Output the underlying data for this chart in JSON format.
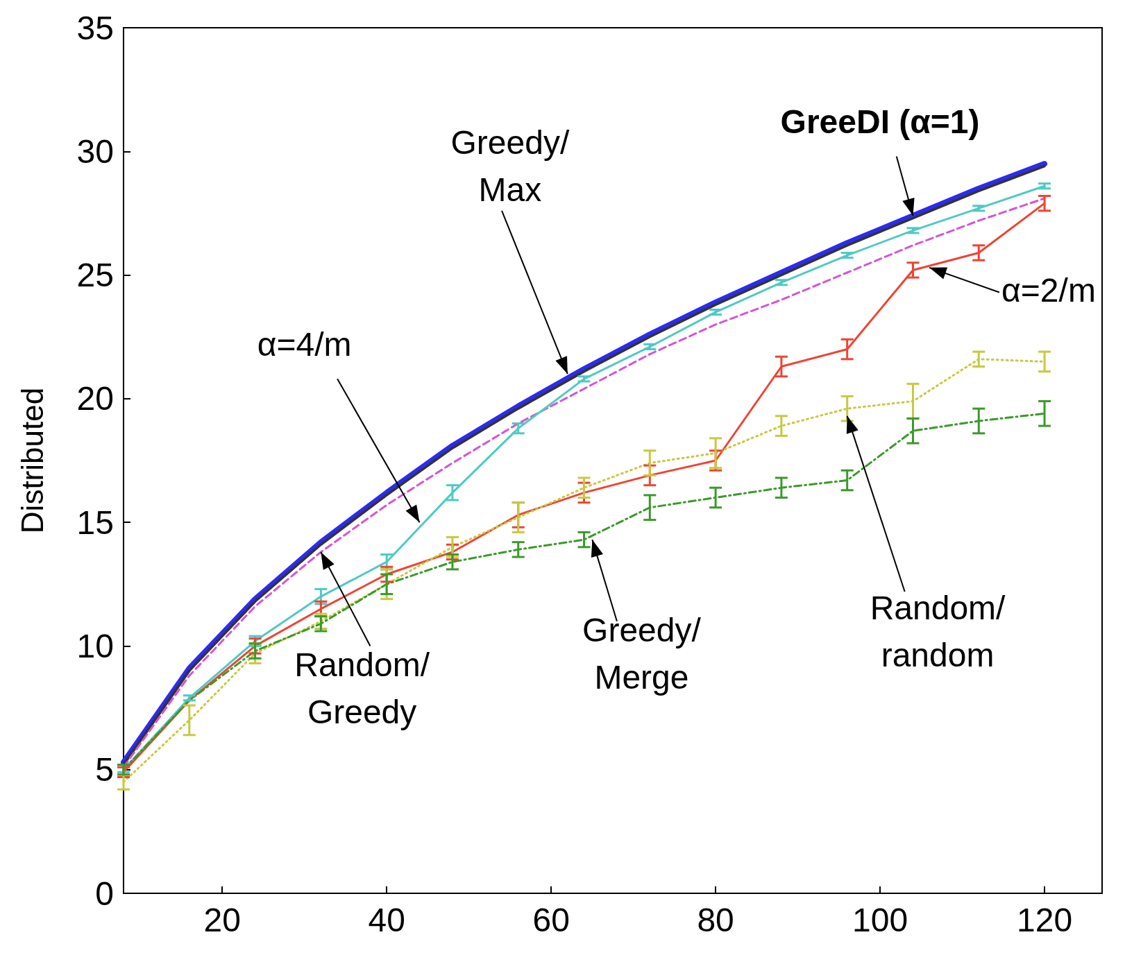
{
  "chart_data": {
    "type": "line",
    "ylabel": "Distributed",
    "x": [
      8,
      16,
      24,
      32,
      40,
      48,
      56,
      64,
      72,
      80,
      88,
      96,
      104,
      112,
      120
    ],
    "xlim": [
      8,
      127
    ],
    "xticks": [
      20,
      40,
      60,
      80,
      100,
      120
    ],
    "ylim": [
      0,
      35
    ],
    "yticks": [
      0,
      5,
      10,
      15,
      20,
      25,
      30,
      35
    ],
    "marker": "none",
    "series": [
      {
        "color": "#2b2bf0",
        "values": [
          5.3,
          9.1,
          11.9,
          14.2,
          16.2,
          18.1,
          19.7,
          21.2,
          22.6,
          23.9,
          25.1,
          26.3,
          27.4,
          28.5,
          29.5
        ]
      },
      {
        "color": "#333333",
        "values": [
          5.2,
          9.0,
          11.8,
          14.1,
          16.1,
          18.0,
          19.6,
          21.1,
          22.5,
          23.8,
          25.0,
          26.2,
          27.3,
          28.4,
          29.4
        ]
      },
      {
        "color": "#d455d4",
        "line_style": "dashed",
        "values": [
          5.1,
          8.8,
          11.6,
          13.8,
          15.7,
          17.4,
          19.0,
          20.4,
          21.8,
          23.0,
          24.0,
          25.1,
          26.2,
          27.2,
          28.1
        ]
      },
      {
        "color": "#4fc9c4",
        "values": [
          5.0,
          7.9,
          10.2,
          12.0,
          13.4,
          16.2,
          18.8,
          20.8,
          22.1,
          23.5,
          24.7,
          25.8,
          26.8,
          27.7,
          28.6
        ],
        "errors": [
          0.1,
          0.1,
          0.2,
          0.3,
          0.3,
          0.3,
          0.2,
          0.1,
          0.1,
          0.1,
          0.1,
          0.1,
          0.1,
          0.1,
          0.1
        ]
      },
      {
        "color": "#ee4433",
        "values": [
          4.9,
          7.8,
          10.0,
          11.5,
          12.9,
          13.8,
          15.3,
          16.2,
          16.9,
          17.5,
          21.3,
          22.0,
          25.2,
          25.9,
          27.9
        ],
        "errors": [
          0.2,
          null,
          0.3,
          0.3,
          0.3,
          0.3,
          0.5,
          0.4,
          0.4,
          0.4,
          0.4,
          0.4,
          0.3,
          0.3,
          0.3
        ]
      },
      {
        "color": "#c8c840",
        "line_style": "dotted",
        "values": [
          4.5,
          7.0,
          9.7,
          11.0,
          12.5,
          14.0,
          15.2,
          16.4,
          17.4,
          17.8,
          18.9,
          19.6,
          19.9,
          21.6,
          21.5
        ],
        "errors": [
          0.3,
          0.6,
          0.4,
          0.3,
          0.6,
          0.4,
          0.6,
          0.4,
          0.5,
          0.6,
          0.4,
          0.5,
          0.7,
          0.3,
          0.4
        ]
      },
      {
        "color": "#3a9a2a",
        "line_style": "dashdot",
        "values": [
          5.0,
          7.8,
          9.8,
          10.9,
          12.5,
          13.4,
          13.9,
          14.3,
          15.6,
          16.0,
          16.4,
          16.7,
          18.7,
          19.1,
          19.4
        ],
        "errors": [
          0.2,
          null,
          0.3,
          0.3,
          0.4,
          0.3,
          0.3,
          0.3,
          0.5,
          0.4,
          0.4,
          0.4,
          0.5,
          0.5,
          0.5
        ]
      }
    ],
    "annotations": [
      {
        "text": "GreeDI (α=1)",
        "x": 104,
        "y": 27.4
      },
      {
        "text": "Greedy/\nMax",
        "x": 62,
        "y": 21.0
      },
      {
        "text": "α=4/m",
        "x": 44,
        "y": 15.0
      },
      {
        "text": "Random/\nGreedy",
        "x": 32,
        "y": 13.8
      },
      {
        "text": "Greedy/\nMerge",
        "x": 65,
        "y": 14.3
      },
      {
        "text": "Random/\nrandom",
        "x": 96,
        "y": 19.3
      },
      {
        "text": "α=2/m",
        "x": 106,
        "y": 25.3
      }
    ]
  }
}
